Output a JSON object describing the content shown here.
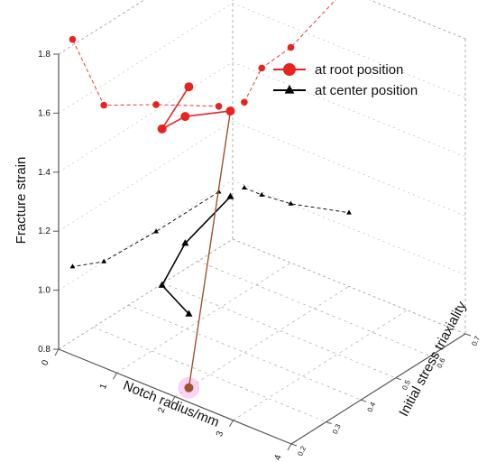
{
  "chart_data": {
    "type": "scatter",
    "title": "",
    "zlabel": "Fracture strain",
    "xlabel": "Notch radius/mm",
    "ylabel": "Initial stress triaxiality",
    "zlim": [
      0.8,
      1.8
    ],
    "xlim": [
      0,
      4
    ],
    "ylim": [
      0.2,
      0.7
    ],
    "z_ticks": [
      "0.8",
      "1.0",
      "1.2",
      "1.4",
      "1.6",
      "1.8"
    ],
    "x_ticks": [
      "0",
      "1",
      "2",
      "3",
      "4"
    ],
    "y_ticks": [
      "0.2",
      "0.3",
      "0.4",
      "0.5",
      "0.6",
      "0.7"
    ],
    "legend_position": "top-right",
    "colors": {
      "root": "#e8231f",
      "center": "#000000",
      "projection_link": "#a0522d",
      "axes": "#555555",
      "grid": "#9a9a9a"
    },
    "series": [
      {
        "name": "at root position",
        "marker": "circle",
        "points": [
          {
            "x": 0.2,
            "y": 0.66,
            "z": 1.28
          },
          {
            "x": 0.5,
            "y": 0.48,
            "z": 1.42
          },
          {
            "x": 1.0,
            "y": 0.33,
            "z": 1.53
          },
          {
            "x": 2.0,
            "y": 0.24,
            "z": 1.82
          }
        ]
      },
      {
        "name": "at center position",
        "marker": "triangle",
        "points": [
          {
            "x": 0.2,
            "y": 0.66,
            "z": 0.99
          },
          {
            "x": 0.5,
            "y": 0.48,
            "z": 0.99
          },
          {
            "x": 1.0,
            "y": 0.33,
            "z": 1.0
          },
          {
            "x": 2.0,
            "y": 0.24,
            "z": 1.05
          }
        ]
      }
    ]
  }
}
